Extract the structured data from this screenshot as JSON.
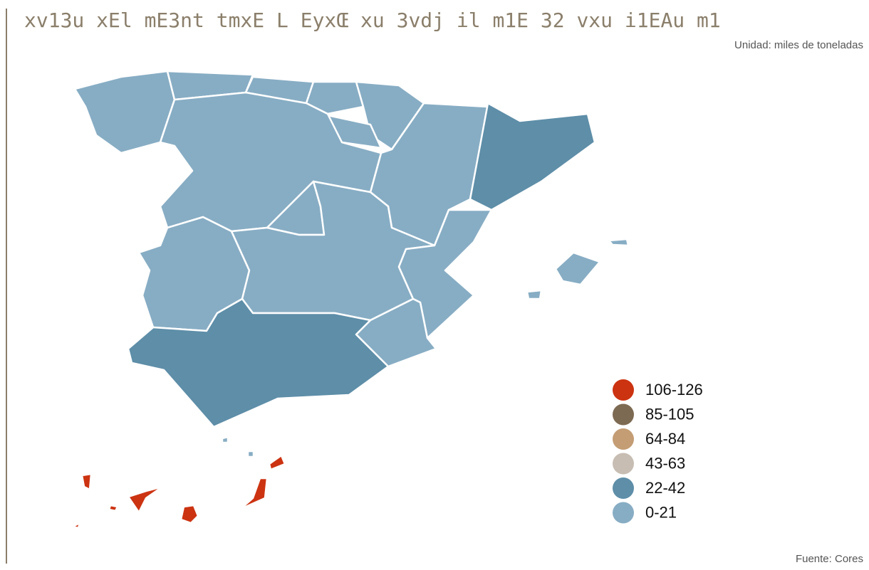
{
  "title": "xv13u xEl mE3nt tmxE L EyxŒ xu 3vdj il m1E 32 vxu i1EAu m1",
  "subtitle": "Unidad: miles de toneladas",
  "source": "Fuente: Cores",
  "legend": [
    {
      "label": "106-126",
      "color": "#cc3311"
    },
    {
      "label": "85-105",
      "color": "#7d6a52"
    },
    {
      "label": "64-84",
      "color": "#c49d74"
    },
    {
      "label": "43-63",
      "color": "#c7bdb2"
    },
    {
      "label": "22-42",
      "color": "#5e8ea8"
    },
    {
      "label": "0-21",
      "color": "#87adc4"
    }
  ],
  "regions": [
    {
      "color": "#87adc4"
    },
    {
      "color": "#87adc4"
    },
    {
      "color": "#87adc4"
    },
    {
      "color": "#87adc4"
    },
    {
      "color": "#87adc4"
    },
    {
      "color": "#87adc4"
    },
    {
      "color": "#87adc4"
    },
    {
      "color": "#5e8ea8"
    },
    {
      "color": "#87adc4"
    },
    {
      "color": "#87adc4"
    },
    {
      "color": "#87adc4"
    },
    {
      "color": "#87adc4"
    },
    {
      "color": "#87adc4"
    },
    {
      "color": "#87adc4"
    },
    {
      "color": "#5e8ea8"
    },
    {
      "color": "#87adc4"
    },
    {
      "color": "#cc3311"
    },
    {
      "color": "#87adc4"
    }
  ]
}
